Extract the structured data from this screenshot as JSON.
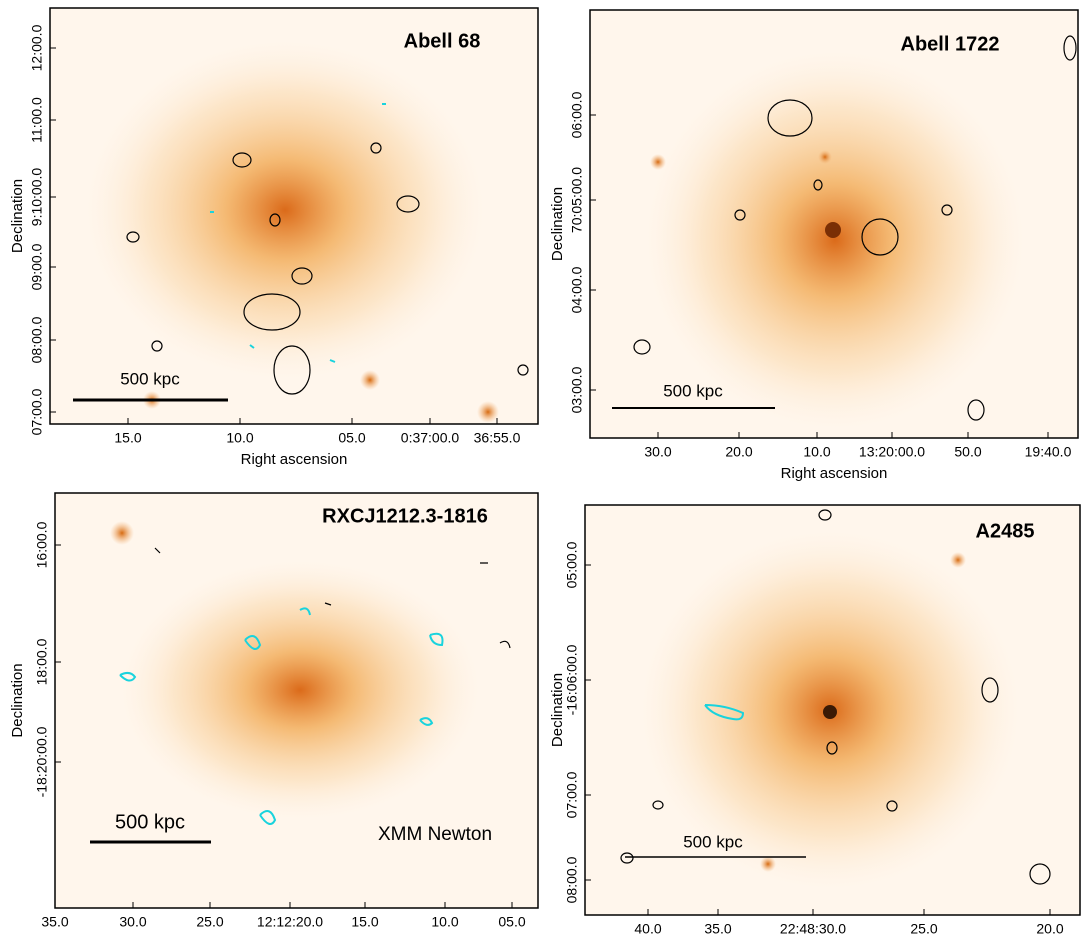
{
  "panels": [
    {
      "title": "Abell 68",
      "x_label": "Right ascension",
      "y_label": "Declination",
      "scale_label": "500 kpc",
      "x_ticks": [
        "15.0",
        "10.0",
        "05.0",
        "0:37:00.0",
        "36:55.0"
      ],
      "y_ticks": [
        "07:00.0",
        "08:00.0",
        "09:00.0",
        "9:10:00.0",
        "11:00.0",
        "12:00.0"
      ]
    },
    {
      "title": "Abell 1722",
      "x_label": "Right ascension",
      "y_label": "Declination",
      "scale_label": "500 kpc",
      "x_ticks": [
        "30.0",
        "20.0",
        "10.0",
        "13:20:00.0",
        "50.0",
        "19:40.0"
      ],
      "y_ticks": [
        "03:00.0",
        "04:00.0",
        "70:05:00.0",
        "06:00.0"
      ]
    },
    {
      "title": "RXCJ1212.3-1816",
      "x_label": "Right ascension",
      "y_label": "Declination",
      "scale_label": "500 kpc",
      "note": "XMM Newton",
      "x_ticks": [
        "35.0",
        "30.0",
        "25.0",
        "12:12:20.0",
        "15.0",
        "10.0",
        "05.0"
      ],
      "y_ticks": [
        "-18:20:00.0",
        "18:00.0",
        "16:00.0"
      ]
    },
    {
      "title": "A2485",
      "x_label": "Right ascension",
      "y_label": "Declination",
      "scale_label": "500 kpc",
      "x_ticks": [
        "40.0",
        "35.0",
        "22:48:30.0",
        "25.0",
        "20.0"
      ],
      "y_ticks": [
        "08:00.0",
        "07:00.0",
        "-16:06:00.0",
        "05:00.0"
      ]
    }
  ]
}
